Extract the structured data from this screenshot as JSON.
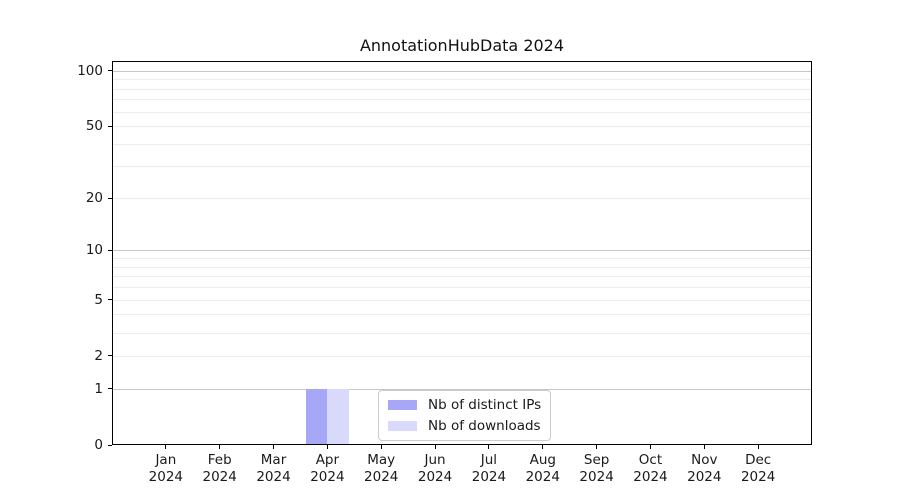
{
  "chart_data": {
    "type": "bar",
    "title": "AnnotationHubData 2024",
    "categories": [
      "Jan",
      "Feb",
      "Mar",
      "Apr",
      "May",
      "Jun",
      "Jul",
      "Aug",
      "Sep",
      "Oct",
      "Nov",
      "Dec"
    ],
    "category_year": "2024",
    "series": [
      {
        "name": "Nb of distinct IPs",
        "color": "#a7a7f8",
        "values": [
          0,
          0,
          0,
          1,
          0,
          0,
          0,
          0,
          0,
          0,
          0,
          0
        ]
      },
      {
        "name": "Nb of downloads",
        "color": "#d9d9fb",
        "values": [
          0,
          0,
          0,
          1,
          0,
          0,
          0,
          0,
          0,
          0,
          0,
          0
        ]
      }
    ],
    "y_scale": "log1p",
    "ylim": [
      0,
      112
    ],
    "y_ticks": [
      0,
      1,
      2,
      5,
      10,
      20,
      50,
      100
    ],
    "y_gridlines_major": [
      1,
      10,
      100
    ],
    "y_gridlines_minor": [
      2,
      3,
      4,
      5,
      6,
      7,
      8,
      9,
      20,
      30,
      40,
      50,
      60,
      70,
      80,
      90
    ],
    "legend": {
      "position": "lower center"
    },
    "colors": {
      "grid_major": "#c6c6c6",
      "grid_minor": "#ececec",
      "axis": "#000000",
      "text": "#1a1a1a"
    }
  }
}
